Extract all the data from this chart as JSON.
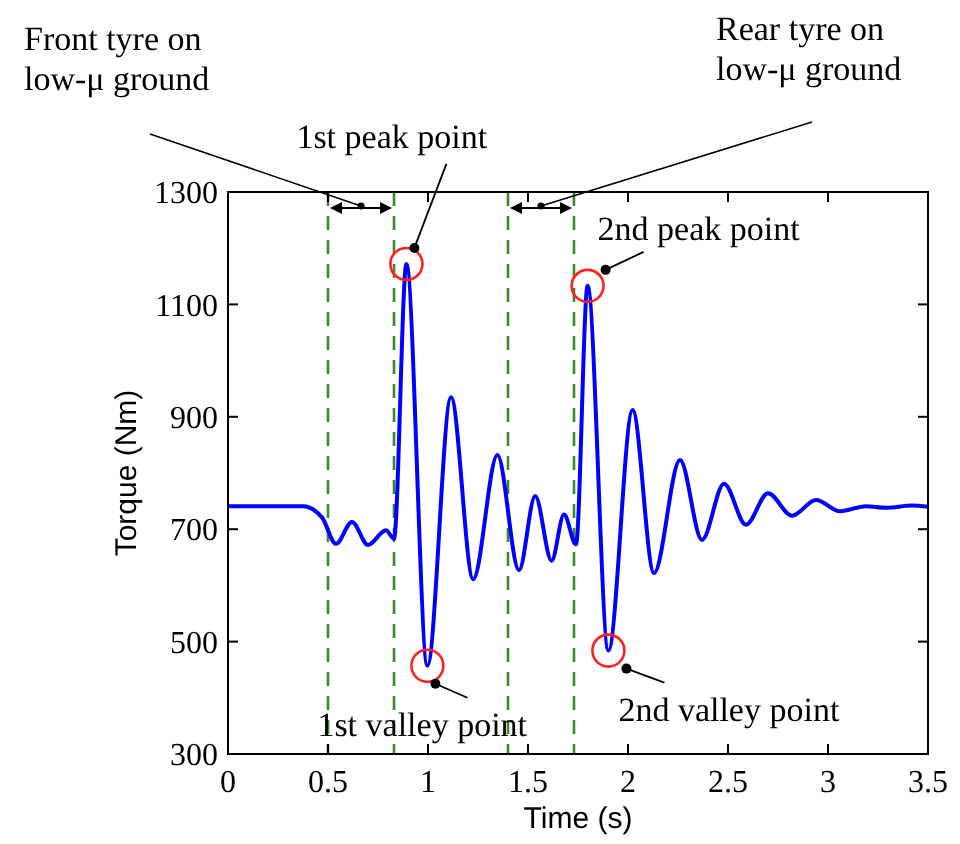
{
  "chart_data": {
    "type": "line",
    "xlabel": "Time (s)",
    "ylabel": "Torque (Nm)",
    "x": [
      0,
      0.376,
      0.47,
      0.54,
      0.62,
      0.7,
      0.79,
      0.83,
      0.892,
      0.997,
      1.115,
      1.226,
      1.347,
      1.455,
      1.536,
      1.618,
      1.68,
      1.74,
      1.798,
      1.902,
      2.023,
      2.13,
      2.26,
      2.37,
      2.48,
      2.59,
      2.7,
      2.82,
      2.94,
      3.06,
      3.19,
      3.29,
      3.42,
      3.5
    ],
    "series": [
      {
        "color": "#0000ff",
        "values": [
          741,
          741,
          721,
          674,
          713,
          672,
          698,
          683,
          1172,
          457,
          935,
          611,
          832,
          627,
          759,
          644,
          726,
          673,
          1133,
          484,
          912,
          622,
          823,
          681,
          781,
          708,
          764,
          724,
          752,
          732,
          741,
          738,
          742,
          740
        ]
      }
    ],
    "xlim": [
      0,
      3.5
    ],
    "ylim": [
      300,
      1300
    ],
    "xticks": [
      0,
      0.5,
      1,
      1.5,
      2,
      2.5,
      3,
      3.5
    ],
    "yticks": [
      300,
      500,
      700,
      900,
      1100,
      1300
    ],
    "grid": false,
    "marker": "none",
    "line_style": "solid",
    "ref_lines": [
      {
        "axis": "x",
        "value": 0.5,
        "color": "#3a8a2a",
        "line_style": "dashed"
      },
      {
        "axis": "x",
        "value": 0.83,
        "color": "#3a8a2a",
        "line_style": "dashed"
      },
      {
        "axis": "x",
        "value": 1.4,
        "color": "#3a8a2a",
        "line_style": "dashed"
      },
      {
        "axis": "x",
        "value": 1.73,
        "color": "#3a8a2a",
        "line_style": "dashed"
      }
    ],
    "annotations": [
      "Front tyre on\nlow-μ ground",
      "Rear tyre on\nlow-μ ground",
      {
        "text": "1st peak point",
        "x": 0.892,
        "y": 1172
      },
      {
        "text": "2nd peak point",
        "x": 1.798,
        "y": 1133
      },
      {
        "text": "1st valley point",
        "x": 0.997,
        "y": 457
      },
      {
        "text": "2nd valley point",
        "x": 1.902,
        "y": 484
      }
    ]
  }
}
